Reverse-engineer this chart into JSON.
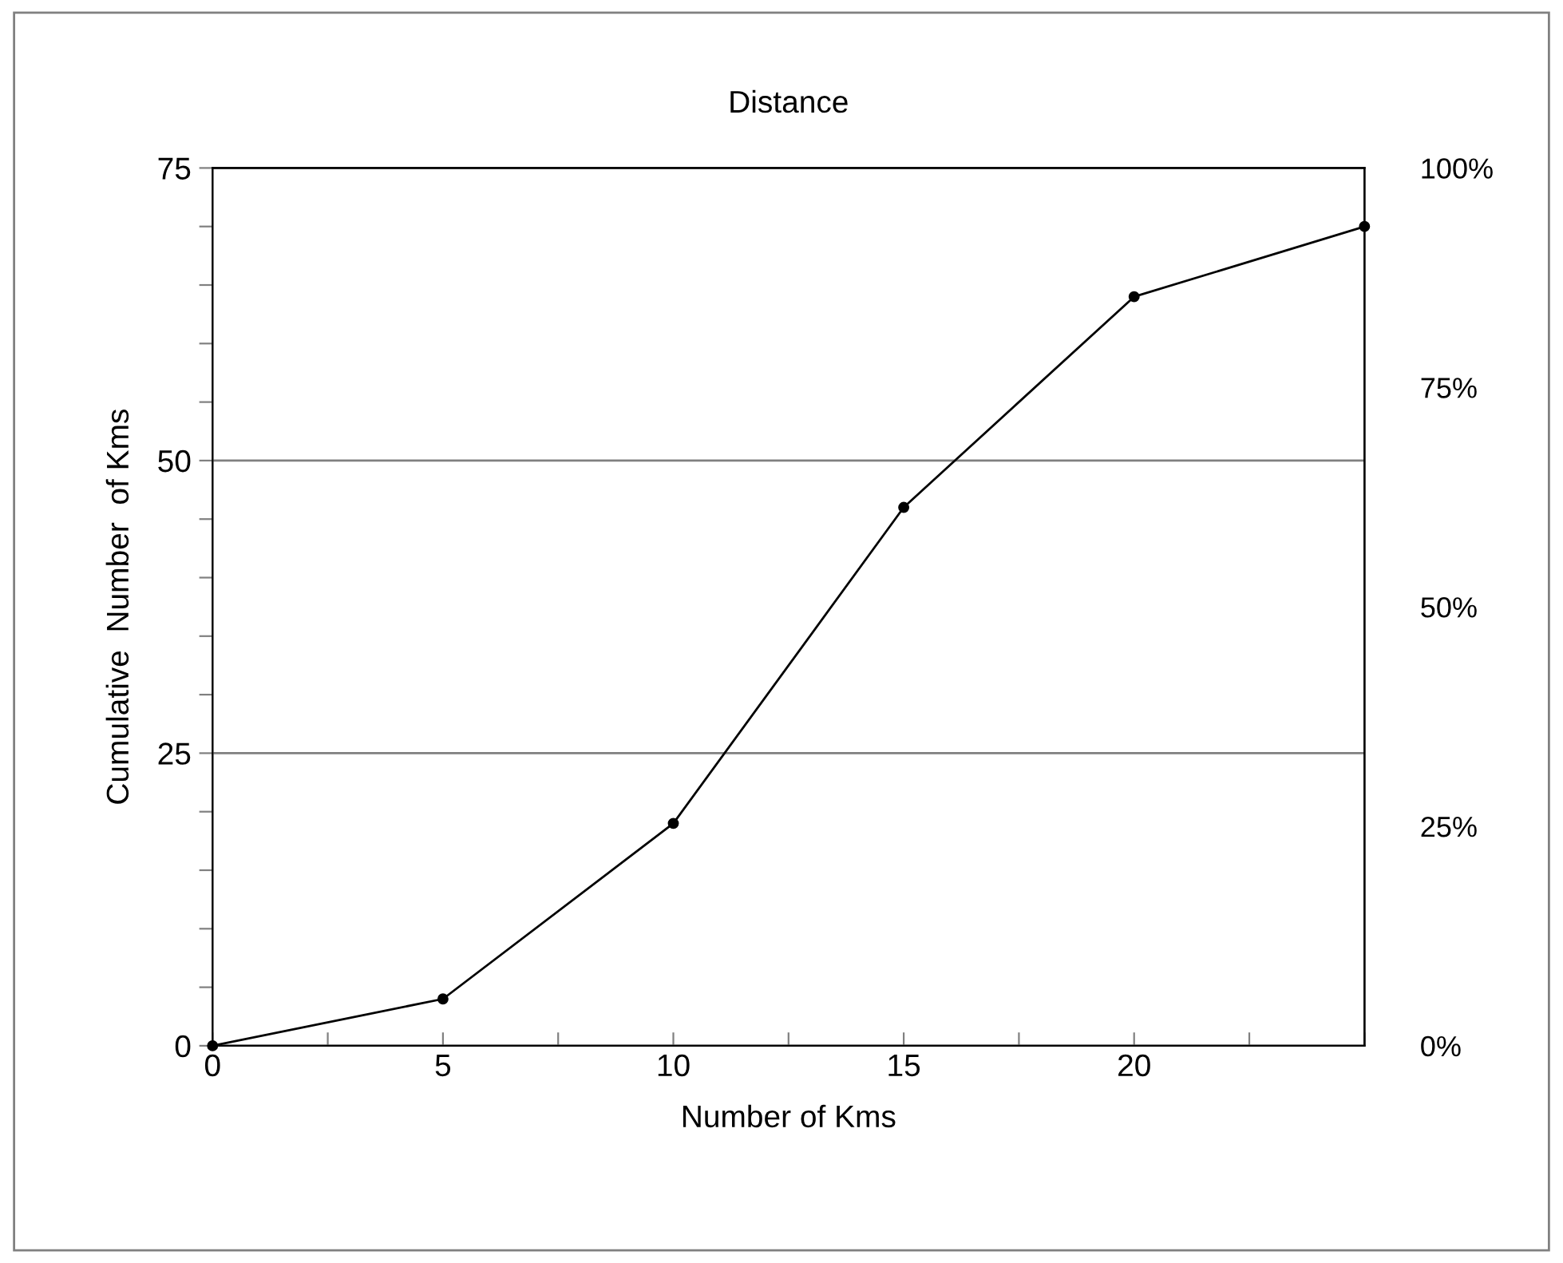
{
  "chart_data": {
    "type": "line",
    "title": "Distance",
    "xlabel": "Number of Kms",
    "ylabel": "Cumulative  Number  of Kms",
    "x": [
      0,
      5,
      10,
      15,
      20,
      25
    ],
    "series": [
      {
        "color": "#000000",
        "values": [
          0,
          4,
          19,
          46,
          64,
          70
        ]
      }
    ],
    "marker": "circle",
    "line_style": "solid",
    "grid": "y",
    "xlim": [
      0,
      25
    ],
    "xticks": [
      0,
      {
        "value": 2.5,
        "label": null
      },
      5,
      {
        "value": 7.5,
        "label": null
      },
      10,
      {
        "value": 12.5,
        "label": null
      },
      15,
      {
        "value": 17.5,
        "label": null
      },
      20,
      {
        "value": 22.5,
        "label": null
      },
      {
        "value": 25,
        "label": null
      }
    ],
    "ylim": [
      0,
      75
    ],
    "yticks": [
      0,
      {
        "value": 5,
        "label": null
      },
      {
        "value": 10,
        "label": null
      },
      {
        "value": 15,
        "label": null
      },
      {
        "value": 20,
        "label": null
      },
      25,
      {
        "value": 30,
        "label": null
      },
      {
        "value": 35,
        "label": null
      },
      {
        "value": 40,
        "label": null
      },
      {
        "value": 45,
        "label": null
      },
      50,
      {
        "value": 55,
        "label": null
      },
      {
        "value": 60,
        "label": null
      },
      {
        "value": 65,
        "label": null
      },
      {
        "value": 70,
        "label": null
      },
      75
    ],
    "y2lim": [
      0,
      100
    ],
    "y2ticks": [
      {
        "value": 0,
        "label": "0%"
      },
      {
        "value": 25,
        "label": "25%"
      },
      {
        "value": 50,
        "label": "50%"
      },
      {
        "value": 75,
        "label": "75%"
      },
      {
        "value": 100,
        "label": "100%"
      }
    ]
  }
}
